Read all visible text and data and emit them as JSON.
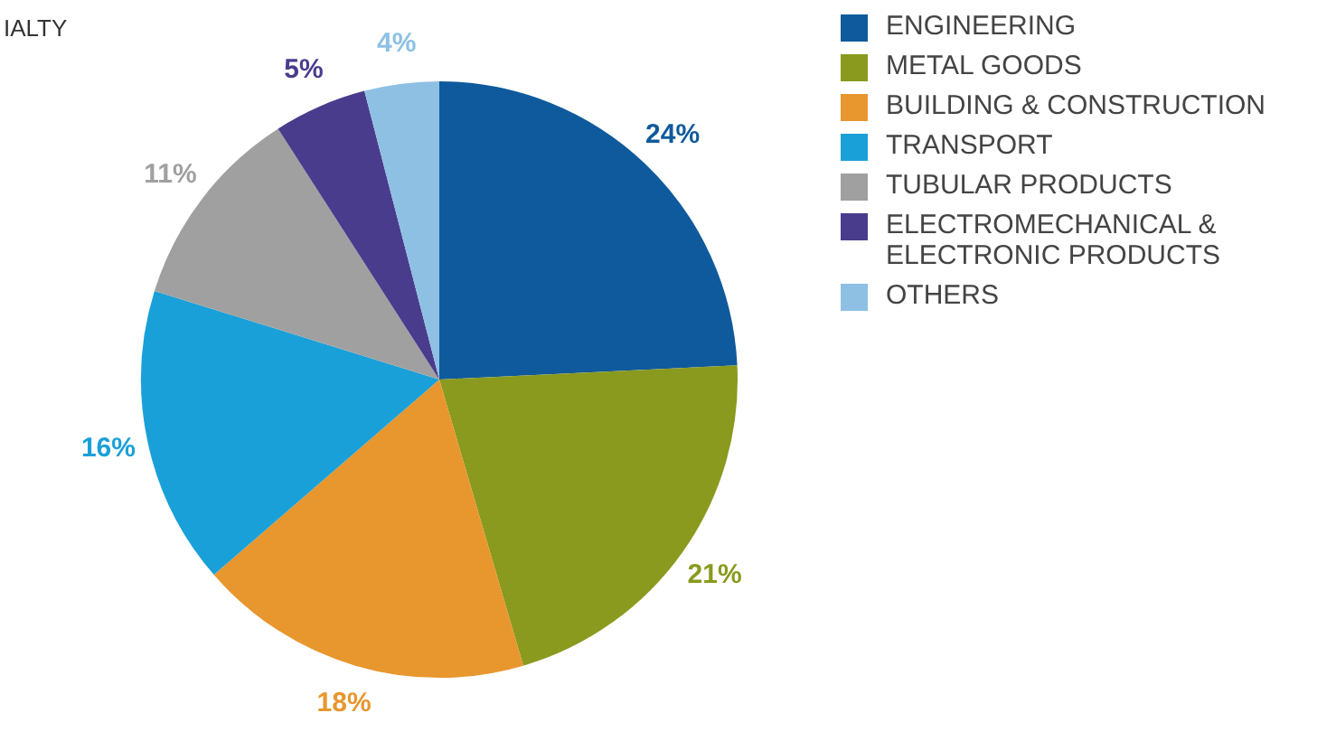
{
  "chart_data": {
    "type": "pie",
    "title": "IALTY",
    "categories": [
      "ENGINEERING",
      "METAL GOODS",
      "BUILDING & CONSTRUCTION",
      "TRANSPORT",
      "TUBULAR PRODUCTS",
      "ELECTROMECHANICAL & ELECTRONIC PRODUCTS",
      "OTHERS"
    ],
    "values": [
      24,
      21,
      18,
      16,
      11,
      5,
      4
    ],
    "colors": [
      "#0f5a9c",
      "#8a9a1e",
      "#e8962e",
      "#1aa0d8",
      "#a0a0a0",
      "#4a3c8c",
      "#8ec0e4"
    ],
    "value_labels": [
      "24%",
      "21%",
      "18%",
      "16%",
      "11%",
      "5%",
      "4%"
    ],
    "legend": "right"
  }
}
